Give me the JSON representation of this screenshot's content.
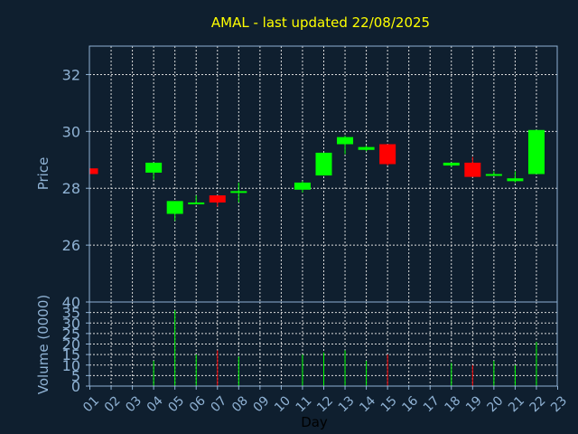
{
  "chart_data": {
    "type": "candlestick",
    "title": "AMAL - last updated 22/08/2025",
    "xlabel": "Day",
    "colors": {
      "background": "#0f1f2f",
      "axis": "#8fb2d4",
      "grid": "#dcdcdc",
      "title": "#ffff00",
      "up": "#00ff00",
      "down": "#ff0000"
    },
    "x_ticks": [
      "01",
      "02",
      "03",
      "04",
      "05",
      "06",
      "07",
      "08",
      "09",
      "10",
      "11",
      "12",
      "13",
      "14",
      "15",
      "16",
      "17",
      "18",
      "19",
      "20",
      "21",
      "22",
      "23"
    ],
    "price_panel": {
      "ylabel": "Price",
      "ylim": [
        24,
        33
      ],
      "yticks": [
        26,
        28,
        30,
        32
      ],
      "grid": true
    },
    "volume_panel": {
      "ylabel": "Volume (0000)",
      "ylim": [
        0,
        40
      ],
      "yticks": [
        0,
        5,
        10,
        15,
        20,
        25,
        30,
        35,
        40
      ],
      "grid": true
    },
    "candles": [
      {
        "day": 1,
        "open": 28.7,
        "high": 28.7,
        "low": 28.5,
        "close": 28.5,
        "volume": 0
      },
      {
        "day": 4,
        "open": 28.55,
        "high": 28.9,
        "low": 28.3,
        "close": 28.9,
        "volume": 12
      },
      {
        "day": 5,
        "open": 27.1,
        "high": 27.55,
        "low": 26.85,
        "close": 27.55,
        "volume": 36
      },
      {
        "day": 6,
        "open": 27.45,
        "high": 27.75,
        "low": 27.45,
        "close": 27.5,
        "volume": 15
      },
      {
        "day": 7,
        "open": 27.75,
        "high": 27.75,
        "low": 27.35,
        "close": 27.5,
        "volume": 17
      },
      {
        "day": 8,
        "open": 27.85,
        "high": 28.2,
        "low": 27.5,
        "close": 27.9,
        "volume": 14
      },
      {
        "day": 11,
        "open": 27.95,
        "high": 28.25,
        "low": 27.85,
        "close": 28.2,
        "volume": 15
      },
      {
        "day": 12,
        "open": 28.45,
        "high": 29.25,
        "low": 28.45,
        "close": 29.25,
        "volume": 16
      },
      {
        "day": 13,
        "open": 29.55,
        "high": 29.85,
        "low": 29.2,
        "close": 29.8,
        "volume": 17
      },
      {
        "day": 14,
        "open": 29.35,
        "high": 29.5,
        "low": 29.3,
        "close": 29.45,
        "volume": 12
      },
      {
        "day": 15,
        "open": 29.55,
        "high": 29.55,
        "low": 28.8,
        "close": 28.85,
        "volume": 15
      },
      {
        "day": 18,
        "open": 28.8,
        "high": 28.9,
        "low": 28.75,
        "close": 28.9,
        "volume": 11
      },
      {
        "day": 19,
        "open": 28.9,
        "high": 29.1,
        "low": 28.4,
        "close": 28.4,
        "volume": 10
      },
      {
        "day": 20,
        "open": 28.5,
        "high": 28.6,
        "low": 28.45,
        "close": 28.5,
        "volume": 12
      },
      {
        "day": 21,
        "open": 28.25,
        "high": 28.6,
        "low": 28.2,
        "close": 28.35,
        "volume": 10
      },
      {
        "day": 22,
        "open": 28.5,
        "high": 30.05,
        "low": 28.5,
        "close": 30.05,
        "volume": 21
      }
    ]
  }
}
